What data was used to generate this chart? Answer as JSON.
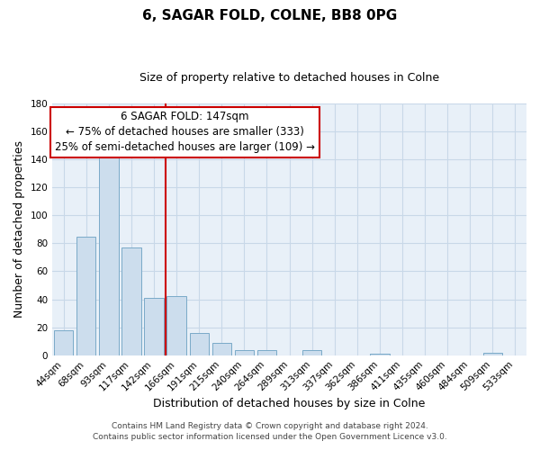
{
  "title": "6, SAGAR FOLD, COLNE, BB8 0PG",
  "subtitle": "Size of property relative to detached houses in Colne",
  "xlabel": "Distribution of detached houses by size in Colne",
  "ylabel": "Number of detached properties",
  "bar_labels": [
    "44sqm",
    "68sqm",
    "93sqm",
    "117sqm",
    "142sqm",
    "166sqm",
    "191sqm",
    "215sqm",
    "240sqm",
    "264sqm",
    "289sqm",
    "313sqm",
    "337sqm",
    "362sqm",
    "386sqm",
    "411sqm",
    "435sqm",
    "460sqm",
    "484sqm",
    "509sqm",
    "533sqm"
  ],
  "bar_values": [
    18,
    85,
    144,
    77,
    41,
    42,
    16,
    9,
    4,
    4,
    0,
    4,
    0,
    0,
    1,
    0,
    0,
    0,
    0,
    2,
    0
  ],
  "bar_color": "#ccdded",
  "bar_edge_color": "#7aaac8",
  "highlight_line_color": "#cc0000",
  "annotation_line1": "6 SAGAR FOLD: 147sqm",
  "annotation_line2": "← 75% of detached houses are smaller (333)",
  "annotation_line3": "25% of semi-detached houses are larger (109) →",
  "ylim": [
    0,
    180
  ],
  "yticks": [
    0,
    20,
    40,
    60,
    80,
    100,
    120,
    140,
    160,
    180
  ],
  "grid_color": "#c8d8e8",
  "background_color": "#e8f0f8",
  "footer_line1": "Contains HM Land Registry data © Crown copyright and database right 2024.",
  "footer_line2": "Contains public sector information licensed under the Open Government Licence v3.0.",
  "title_fontsize": 11,
  "subtitle_fontsize": 9,
  "axis_label_fontsize": 9,
  "tick_fontsize": 7.5,
  "annotation_fontsize": 8.5,
  "footer_fontsize": 6.5
}
